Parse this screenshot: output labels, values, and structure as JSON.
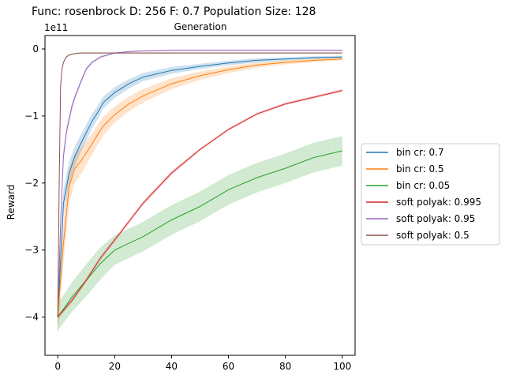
{
  "chart_data": {
    "type": "line",
    "title": "Func: rosenbrock D: 256 F: 0.7 Population Size: 128",
    "xlabel": "Generation",
    "ylabel": "Reward",
    "y_offset_label": "1e11",
    "xlim": [
      -4.5,
      104.5
    ],
    "ylim": [
      -4.57,
      0.2
    ],
    "x_ticks": [
      0,
      20,
      40,
      60,
      80,
      100
    ],
    "x_tick_labels": [
      "0",
      "20",
      "40",
      "60",
      "80",
      "100"
    ],
    "y_ticks": [
      0,
      -1,
      -2,
      -3,
      -4
    ],
    "y_tick_labels": [
      "0",
      "−1",
      "−2",
      "−3",
      "−4"
    ],
    "legend_position": "center-right-outside",
    "series": [
      {
        "name": "bin cr: 0.7",
        "color": "#1f77b4",
        "x": [
          0,
          2,
          4,
          6,
          8,
          10,
          12,
          14,
          16,
          20,
          25,
          30,
          40,
          50,
          60,
          70,
          80,
          90,
          100
        ],
        "y": [
          -4.0,
          -2.3,
          -1.85,
          -1.6,
          -1.42,
          -1.25,
          -1.08,
          -0.95,
          -0.8,
          -0.65,
          -0.52,
          -0.42,
          -0.32,
          -0.26,
          -0.21,
          -0.17,
          -0.15,
          -0.13,
          -0.12
        ],
        "band": [
          0.25,
          0.2,
          0.17,
          0.15,
          0.13,
          0.12,
          0.11,
          0.1,
          0.09,
          0.08,
          0.07,
          0.06,
          0.05,
          0.04,
          0.035,
          0.03,
          0.025,
          0.02,
          0.02
        ]
      },
      {
        "name": "bin cr: 0.5",
        "color": "#ff7f0e",
        "x": [
          0,
          2,
          4,
          6,
          8,
          10,
          12,
          14,
          16,
          20,
          25,
          30,
          40,
          50,
          60,
          70,
          80,
          90,
          100
        ],
        "y": [
          -4.0,
          -2.9,
          -2.05,
          -1.78,
          -1.68,
          -1.55,
          -1.42,
          -1.28,
          -1.15,
          -0.98,
          -0.82,
          -0.7,
          -0.52,
          -0.4,
          -0.31,
          -0.24,
          -0.2,
          -0.17,
          -0.15
        ],
        "band": [
          0.3,
          0.3,
          0.25,
          0.22,
          0.2,
          0.18,
          0.16,
          0.15,
          0.14,
          0.12,
          0.11,
          0.1,
          0.08,
          0.06,
          0.05,
          0.04,
          0.03,
          0.03,
          0.02
        ]
      },
      {
        "name": "bin cr: 0.05",
        "color": "#2ca02c",
        "x": [
          0,
          5,
          10,
          15,
          20,
          30,
          40,
          50,
          60,
          70,
          80,
          90,
          100
        ],
        "y": [
          -4.0,
          -3.7,
          -3.45,
          -3.2,
          -3.0,
          -2.8,
          -2.55,
          -2.35,
          -2.1,
          -1.92,
          -1.78,
          -1.62,
          -1.52
        ],
        "band": [
          0.2,
          0.22,
          0.24,
          0.24,
          0.22,
          0.22,
          0.22,
          0.22,
          0.22,
          0.22,
          0.22,
          0.22,
          0.22
        ]
      },
      {
        "name": "soft polyak: 0.995",
        "color": "#d62728",
        "x": [
          0,
          5,
          10,
          15,
          20,
          30,
          40,
          50,
          60,
          70,
          80,
          90,
          100
        ],
        "y": [
          -4.0,
          -3.75,
          -3.45,
          -3.12,
          -2.85,
          -2.3,
          -1.85,
          -1.5,
          -1.2,
          -0.97,
          -0.82,
          -0.72,
          -0.62
        ],
        "band": [
          0.03,
          0.03,
          0.03,
          0.03,
          0.03,
          0.03,
          0.03,
          0.02,
          0.02,
          0.02,
          0.02,
          0.02,
          0.02
        ]
      },
      {
        "name": "soft polyak: 0.95",
        "color": "#9467bd",
        "x": [
          0,
          1,
          2,
          3,
          4,
          5,
          6,
          8,
          10,
          12,
          15,
          20,
          25,
          30,
          40,
          60,
          80,
          100
        ],
        "y": [
          -4.0,
          -2.6,
          -1.6,
          -1.25,
          -1.05,
          -0.85,
          -0.72,
          -0.5,
          -0.3,
          -0.2,
          -0.12,
          -0.06,
          -0.04,
          -0.03,
          -0.02,
          -0.02,
          -0.02,
          -0.02
        ],
        "band": [
          0.15,
          0.12,
          0.1,
          0.08,
          0.07,
          0.06,
          0.05,
          0.04,
          0.03,
          0.02,
          0.02,
          0.01,
          0.01,
          0.01,
          0.01,
          0.01,
          0.01,
          0.01
        ]
      },
      {
        "name": "soft polyak: 0.5",
        "color": "#8c564b",
        "x": [
          0,
          0.5,
          1,
          1.5,
          2,
          3,
          4,
          5,
          6,
          8,
          10,
          15,
          20,
          40,
          60,
          80,
          100
        ],
        "y": [
          -4.0,
          -2.0,
          -0.55,
          -0.3,
          -0.2,
          -0.12,
          -0.09,
          -0.08,
          -0.07,
          -0.06,
          -0.06,
          -0.06,
          -0.06,
          -0.06,
          -0.06,
          -0.06,
          -0.06
        ],
        "band": [
          0.1,
          0.05,
          0.04,
          0.03,
          0.02,
          0.02,
          0.01,
          0.01,
          0.01,
          0.01,
          0.01,
          0.01,
          0.01,
          0.01,
          0.01,
          0.01,
          0.01
        ]
      }
    ]
  }
}
